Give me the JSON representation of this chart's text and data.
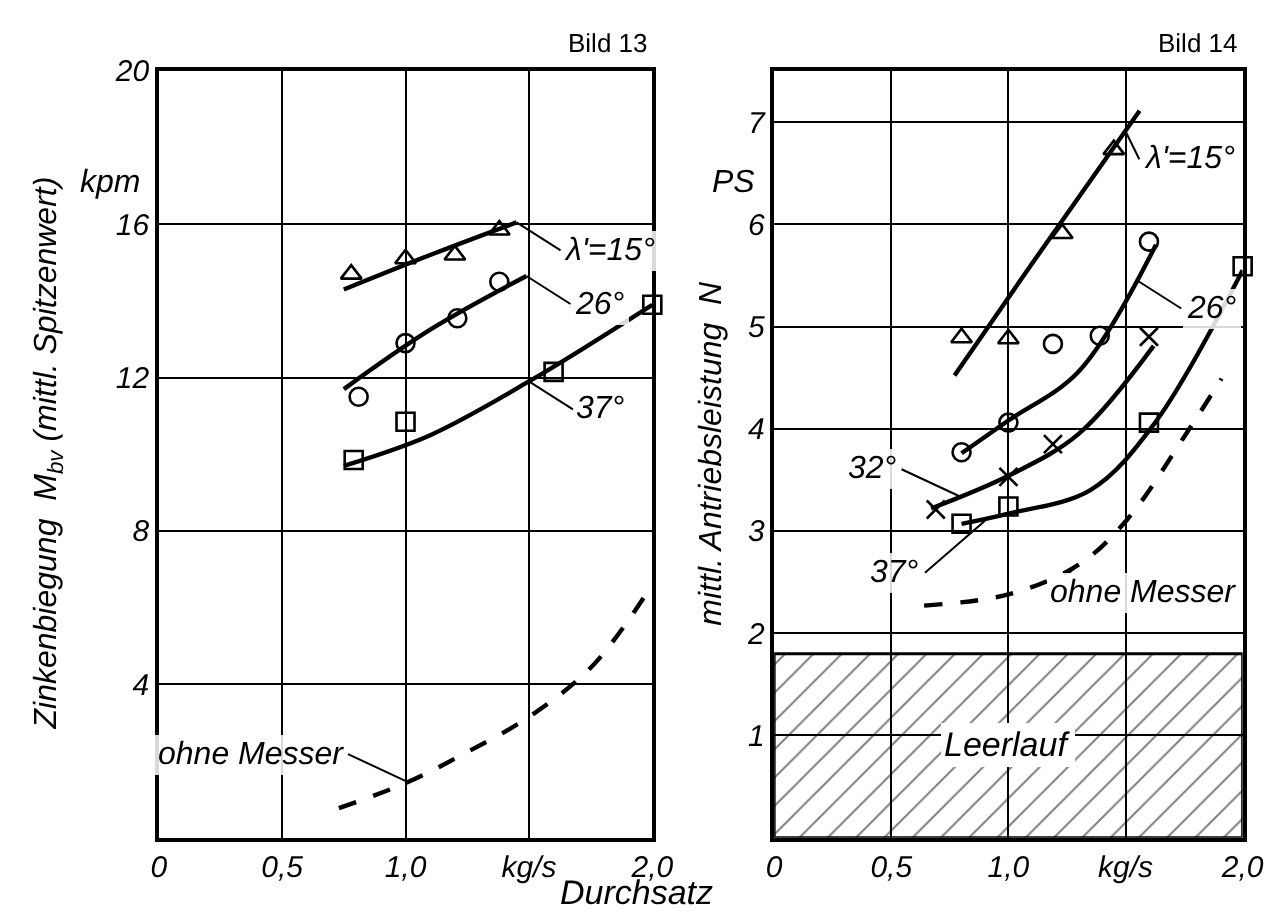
{
  "chart_data": [
    {
      "type": "line",
      "title": "Bild 13",
      "ylabel": "Zinkenbiegung  M$_{bv}$ (mittl. Spitzenwert)",
      "xlim": [
        0,
        2
      ],
      "ylim": [
        0,
        20
      ],
      "xticks": [
        0,
        {
          "value": 0.5,
          "label": "0,5"
        },
        {
          "value": 1.0,
          "label": "1,0"
        },
        {
          "value": 1.5,
          "label": "kg/s"
        },
        {
          "value": 2.0,
          "label": "2,0"
        }
      ],
      "yticks": [
        {
          "value": 0,
          "label": null
        },
        4,
        8,
        12,
        16,
        20
      ],
      "grid": true,
      "series": [
        {
          "type": "scatter",
          "marker": "triangle",
          "color": "#000000",
          "x": [
            0.78,
            1.0,
            1.2,
            1.38
          ],
          "values": [
            14.7,
            15.1,
            15.2,
            15.85
          ]
        },
        {
          "marker": "none",
          "line_style": "solid",
          "color": "#000000",
          "x": [
            0.75,
            1.1,
            1.45
          ],
          "values": [
            14.3,
            15.2,
            16.05
          ]
        },
        {
          "type": "scatter",
          "marker": "circle",
          "color": "#000000",
          "x": [
            0.81,
            1.0,
            1.21,
            1.38
          ],
          "values": [
            11.5,
            12.9,
            13.55,
            14.5
          ]
        },
        {
          "marker": "none",
          "line_style": "solid",
          "color": "#000000",
          "x": [
            0.75,
            1.1,
            1.49
          ],
          "values": [
            11.7,
            13.25,
            14.65
          ]
        },
        {
          "type": "scatter",
          "marker": "square",
          "color": "#000000",
          "x": [
            0.79,
            1.0,
            1.6,
            2.0
          ],
          "values": [
            9.85,
            10.85,
            12.15,
            13.9
          ]
        },
        {
          "marker": "none",
          "line_style": "solid",
          "color": "#000000",
          "x": [
            0.75,
            1.1,
            1.5,
            2.0
          ],
          "values": [
            9.7,
            10.5,
            11.9,
            13.9
          ]
        },
        {
          "marker": "none",
          "line_style": "dashed",
          "color": "#000000",
          "x": [
            0.73,
            1.01,
            1.24,
            1.5,
            1.76,
            2.0
          ],
          "values": [
            0.77,
            1.45,
            2.2,
            3.15,
            4.5,
            6.6
          ]
        }
      ],
      "annotations": [
        "kpm",
        {
          "text": "λ'=15°",
          "x": 1.45,
          "y": 16.05
        },
        {
          "text": "26°",
          "x": 1.49,
          "y": 14.65
        },
        {
          "text": "37°",
          "x": 1.5,
          "y": 11.9
        },
        {
          "text": "ohne Messer",
          "x": 1.01,
          "y": 1.45
        }
      ]
    },
    {
      "type": "line",
      "title": "Bild 14",
      "ylabel": "mittl. Antriebsleistung  N",
      "xlabel": "Durchsatz",
      "xlim": [
        0,
        2
      ],
      "ylim": [
        0,
        7.5
      ],
      "xticks": [
        0,
        {
          "value": 0.5,
          "label": "0,5"
        },
        {
          "value": 1.0,
          "label": "1,0"
        },
        {
          "value": 1.5,
          "label": "kg/s"
        },
        {
          "value": 2.0,
          "label": "2,0"
        }
      ],
      "yticks": [
        {
          "value": 0,
          "label": null
        },
        1,
        2,
        3,
        4,
        5,
        6,
        7
      ],
      "grid": true,
      "bands": [
        {
          "axis": "y",
          "from": 0,
          "to": 1.8,
          "label": "Leerlauf",
          "color": "#000000"
        }
      ],
      "series": [
        {
          "type": "scatter",
          "marker": "triangle",
          "color": "#000000",
          "x": [
            0.8,
            1.0,
            1.23,
            1.45
          ],
          "values": [
            4.89,
            4.88,
            5.91,
            6.73
          ]
        },
        {
          "marker": "none",
          "line_style": "solid",
          "color": "#000000",
          "x": [
            0.77,
            1.09,
            1.56
          ],
          "values": [
            4.52,
            5.58,
            7.11
          ]
        },
        {
          "type": "scatter",
          "marker": "circle",
          "color": "#000000",
          "x": [
            0.8,
            1.0,
            1.19,
            1.39,
            1.6
          ],
          "values": [
            3.77,
            4.06,
            4.83,
            4.91,
            5.83
          ]
        },
        {
          "marker": "none",
          "line_style": "solid",
          "color": "#000000",
          "x": [
            0.8,
            1.0,
            1.3,
            1.63
          ],
          "values": [
            3.76,
            4.08,
            4.56,
            5.8
          ]
        },
        {
          "type": "scatter",
          "marker": "cross",
          "color": "#000000",
          "x": [
            0.69,
            1.0,
            1.19,
            1.6
          ],
          "values": [
            3.21,
            3.53,
            3.85,
            4.9
          ]
        },
        {
          "marker": "none",
          "line_style": "solid",
          "color": "#000000",
          "x": [
            0.67,
            1.0,
            1.3,
            1.62
          ],
          "values": [
            3.22,
            3.54,
            3.95,
            4.81
          ]
        },
        {
          "type": "scatter",
          "marker": "square",
          "color": "#000000",
          "x": [
            0.8,
            1.0,
            1.6,
            2.0
          ],
          "values": [
            3.07,
            3.24,
            4.06,
            5.59
          ]
        },
        {
          "marker": "none",
          "line_style": "solid",
          "color": "#000000",
          "x": [
            0.8,
            1.0,
            1.35,
            1.62,
            2.0
          ],
          "values": [
            3.07,
            3.17,
            3.4,
            4.04,
            5.55
          ]
        },
        {
          "marker": "none",
          "line_style": "dashed",
          "color": "#000000",
          "x": [
            0.64,
            1.0,
            1.3,
            1.51,
            1.75,
            1.91
          ],
          "values": [
            2.27,
            2.38,
            2.67,
            3.12,
            3.92,
            4.49
          ]
        }
      ],
      "annotations": [
        "PS",
        {
          "text": "λ'=15°",
          "x": 1.5,
          "y": 6.91
        },
        {
          "text": "26°",
          "x": 1.55,
          "y": 5.45
        },
        {
          "text": "32°",
          "x": 0.8,
          "y": 3.33
        },
        {
          "text": "37°",
          "x": 0.9,
          "y": 3.1
        },
        {
          "text": "ohne Messer",
          "x": 1.3,
          "y": 2.67
        }
      ]
    }
  ]
}
